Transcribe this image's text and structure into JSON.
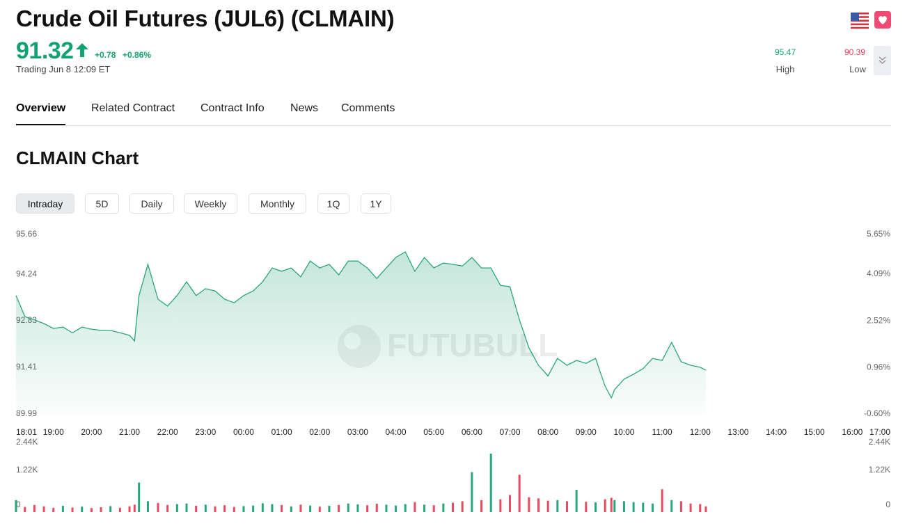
{
  "header": {
    "title": "Crude Oil Futures (JUL6) (CLMAIN)",
    "price": 91.32,
    "change": "+0.78",
    "change_percent": "+0.86%",
    "status": "Trading Jun 8 12:09 ET",
    "high": {
      "value": 95.47,
      "label": "High"
    },
    "low": {
      "value": 90.39,
      "label": "Low"
    }
  },
  "tabs": [
    "Overview",
    "Related Contract",
    "Contract Info",
    "News",
    "Comments"
  ],
  "active_tab": 0,
  "section_title": "CLMAIN Chart",
  "periods": [
    "Intraday",
    "5D",
    "Daily",
    "Weekly",
    "Monthly",
    "1Q",
    "1Y"
  ],
  "active_period": 0,
  "watermark": "FUTUBULL",
  "chart_data": [
    {
      "type": "line",
      "color": "#2aa57a",
      "grid": false,
      "x": [
        "18:01",
        "18:15",
        "18:30",
        "18:45",
        "19:00",
        "19:15",
        "19:30",
        "19:45",
        "20:00",
        "20:15",
        "20:30",
        "20:45",
        "21:00",
        "21:08",
        "21:15",
        "21:29",
        "21:45",
        "22:00",
        "22:15",
        "22:30",
        "22:45",
        "23:00",
        "23:15",
        "23:30",
        "23:45",
        "00:00",
        "00:15",
        "00:30",
        "00:45",
        "01:00",
        "01:15",
        "01:30",
        "01:45",
        "02:00",
        "02:15",
        "02:30",
        "02:45",
        "03:00",
        "03:15",
        "03:30",
        "03:45",
        "04:00",
        "04:15",
        "04:30",
        "04:45",
        "05:00",
        "05:15",
        "05:30",
        "05:45",
        "06:00",
        "06:15",
        "06:30",
        "06:45",
        "07:00",
        "07:15",
        "07:30",
        "07:45",
        "08:00",
        "08:15",
        "08:30",
        "08:45",
        "09:00",
        "09:15",
        "09:30",
        "09:40",
        "09:45",
        "10:00",
        "10:15",
        "10:30",
        "10:45",
        "11:00",
        "11:15",
        "11:30",
        "11:45",
        "12:00",
        "12:09"
      ],
      "values": [
        93.59,
        92.95,
        92.85,
        92.74,
        92.59,
        92.63,
        92.46,
        92.63,
        92.57,
        92.53,
        92.53,
        92.46,
        92.38,
        92.21,
        93.59,
        94.54,
        93.48,
        93.27,
        93.59,
        94.01,
        93.59,
        93.8,
        93.73,
        93.48,
        93.37,
        93.59,
        93.73,
        94.01,
        94.43,
        94.33,
        94.43,
        94.16,
        94.64,
        94.43,
        94.54,
        94.22,
        94.64,
        94.64,
        94.43,
        94.11,
        94.43,
        94.75,
        94.92,
        94.33,
        94.75,
        94.43,
        94.58,
        94.54,
        94.49,
        94.75,
        94.43,
        94.43,
        93.9,
        93.86,
        92.85,
        92.0,
        91.47,
        91.15,
        91.68,
        91.47,
        91.62,
        91.53,
        91.68,
        90.84,
        90.48,
        90.73,
        91.05,
        91.2,
        91.37,
        91.68,
        91.62,
        92.17,
        91.58,
        91.47,
        91.41,
        91.32
      ],
      "xlim": [
        "18:01",
        "17:00"
      ],
      "xticks": [
        "18:01",
        "19:00",
        "20:00",
        "21:00",
        "22:00",
        "23:00",
        "00:00",
        "01:00",
        "02:00",
        "03:00",
        "04:00",
        "05:00",
        "06:00",
        "07:00",
        "08:00",
        "09:00",
        "10:00",
        "11:00",
        "12:00",
        "13:00",
        "14:00",
        "15:00",
        "16:00",
        "17:00"
      ],
      "ylim": [
        89.99,
        95.66
      ],
      "yticks": [
        95.66,
        94.24,
        92.83,
        91.41,
        89.99
      ],
      "y2lim": [
        -0.6,
        5.65
      ],
      "y2ticks": [
        {
          "value": 5.65,
          "label": "5.65%"
        },
        {
          "value": 4.09,
          "label": "4.09%"
        },
        {
          "value": 2.52,
          "label": "2.52%"
        },
        {
          "value": 0.96,
          "label": "0.96%"
        },
        {
          "value": -0.6,
          "label": "-0.60%"
        }
      ]
    },
    {
      "type": "bar",
      "up_color": "#26a67b",
      "down_color": "#e84a5f",
      "values": [
        420,
        180,
        250,
        200,
        150,
        220,
        160,
        190,
        140,
        170,
        210,
        150,
        200,
        260,
        1035,
        380,
        320,
        250,
        280,
        300,
        220,
        260,
        200,
        240,
        180,
        210,
        230,
        310,
        280,
        250,
        200,
        260,
        230,
        190,
        220,
        250,
        300,
        270,
        240,
        290,
        260,
        230,
        280,
        350,
        260,
        240,
        300,
        330,
        380,
        1400,
        420,
        2050,
        450,
        600,
        1310,
        520,
        480,
        400,
        420,
        380,
        780,
        360,
        340,
        450,
        500,
        420,
        380,
        350,
        330,
        300,
        800,
        420,
        380,
        300,
        280,
        200
      ],
      "ylim": [
        0,
        2440
      ],
      "yticks": [
        {
          "value": 2440,
          "label": "2.44K"
        },
        {
          "value": 1220,
          "label": "1.22K"
        },
        0
      ]
    }
  ]
}
